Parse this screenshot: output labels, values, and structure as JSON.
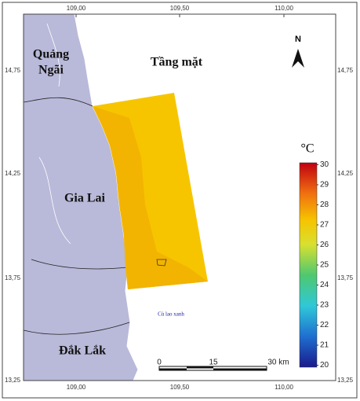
{
  "map": {
    "title": "Tầng mặt",
    "lon_labels": [
      "109,00",
      "109,50",
      "110,00"
    ],
    "lat_labels": [
      "14,75",
      "14,25",
      "13,75",
      "13,25"
    ],
    "places": [
      {
        "lines": [
          "Quảng",
          "Ngãi"
        ]
      },
      {
        "lines": [
          "Gia Lai"
        ]
      },
      {
        "lines": [
          "Đắk Lắk"
        ]
      }
    ],
    "island": "Cù lao xanh",
    "north": "N",
    "legend": {
      "unit": "°C",
      "ticks": [
        20,
        21,
        22,
        23,
        24,
        25,
        26,
        27,
        28,
        29,
        30
      ]
    },
    "scale": [
      "0",
      "15",
      "30 km"
    ]
  }
}
